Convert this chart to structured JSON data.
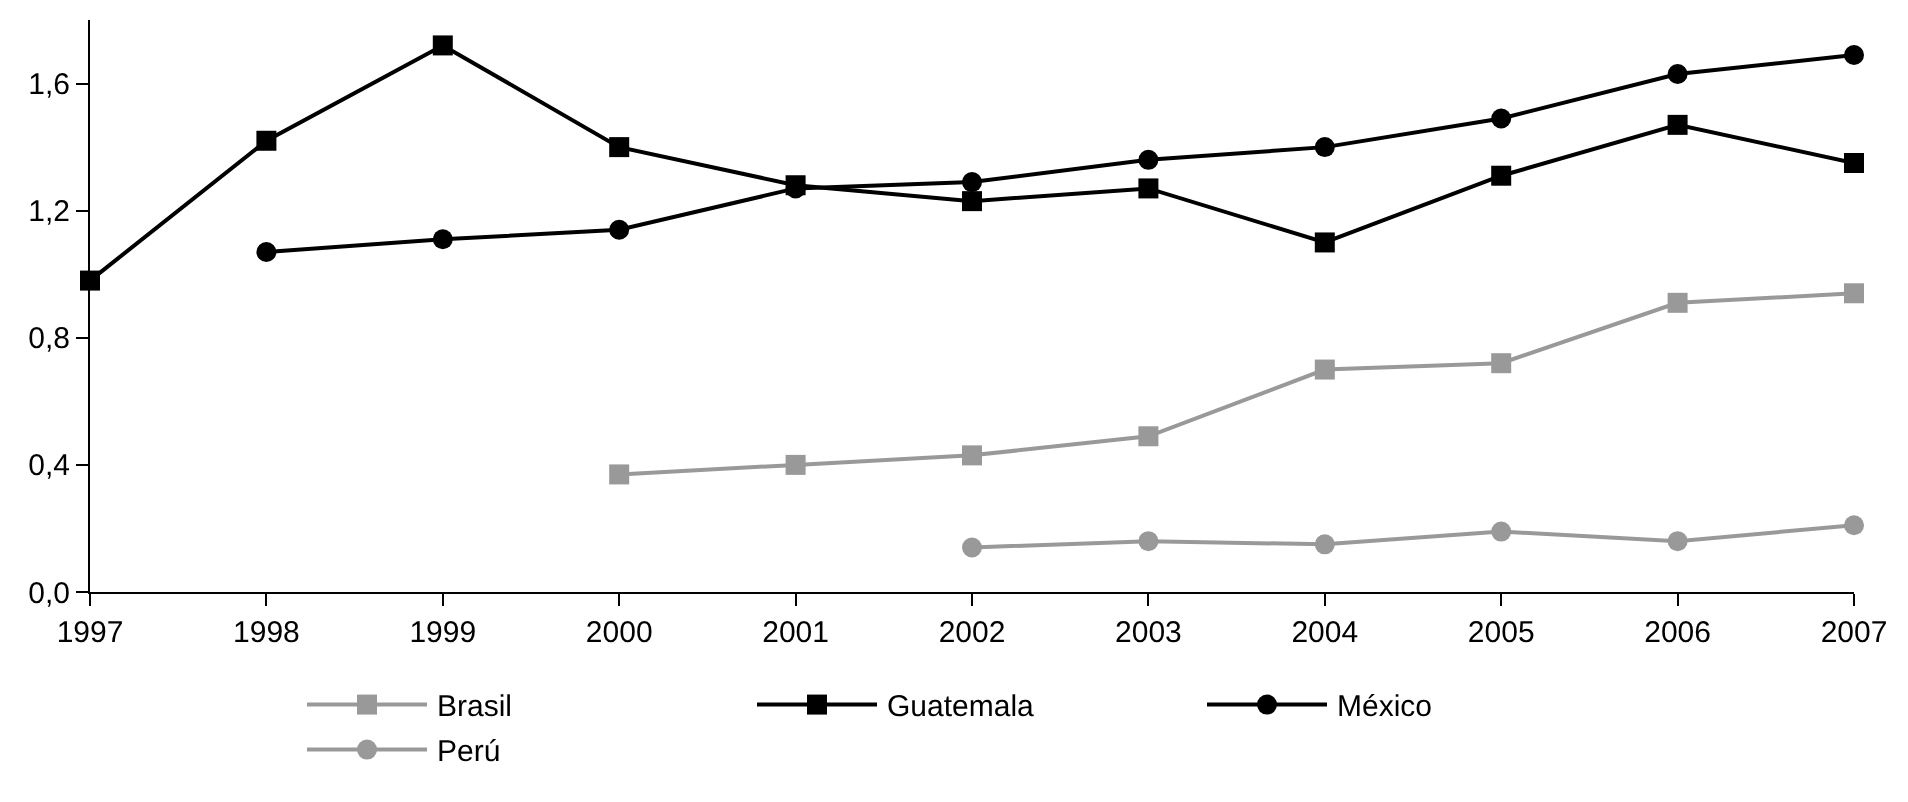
{
  "chart_data": {
    "type": "line",
    "x": [
      1997,
      1998,
      1999,
      2000,
      2001,
      2002,
      2003,
      2004,
      2005,
      2006,
      2007
    ],
    "series": [
      {
        "name": "Brasil",
        "color": "#999999",
        "marker": "square",
        "values": [
          null,
          null,
          null,
          0.37,
          0.4,
          0.43,
          0.49,
          0.7,
          0.72,
          0.91,
          0.94
        ]
      },
      {
        "name": "Guatemala",
        "color": "#000000",
        "marker": "square",
        "values": [
          0.98,
          1.42,
          1.72,
          1.4,
          1.28,
          1.23,
          1.27,
          1.1,
          1.31,
          1.47,
          1.35
        ]
      },
      {
        "name": "México",
        "color": "#000000",
        "marker": "circle",
        "values": [
          null,
          1.07,
          1.11,
          1.14,
          1.27,
          1.29,
          1.36,
          1.4,
          1.49,
          1.63,
          1.69
        ]
      },
      {
        "name": "Perú",
        "color": "#999999",
        "marker": "circle",
        "values": [
          null,
          null,
          null,
          null,
          null,
          0.14,
          0.16,
          0.15,
          0.19,
          0.16,
          0.21
        ]
      }
    ],
    "xlim": [
      1997,
      2007
    ],
    "xticks": [
      1997,
      1998,
      1999,
      2000,
      2001,
      2002,
      2003,
      2004,
      2005,
      2006,
      2007
    ],
    "ylim": [
      0,
      1.8
    ],
    "yticks": [
      {
        "value": 0,
        "label": "0,0"
      },
      {
        "value": 0.4,
        "label": "0,4"
      },
      {
        "value": 0.8,
        "label": "0,8"
      },
      {
        "value": 1.2,
        "label": "1,2"
      },
      {
        "value": 1.6,
        "label": "1,6"
      }
    ],
    "legend": "bottom",
    "line_style": "solid"
  }
}
